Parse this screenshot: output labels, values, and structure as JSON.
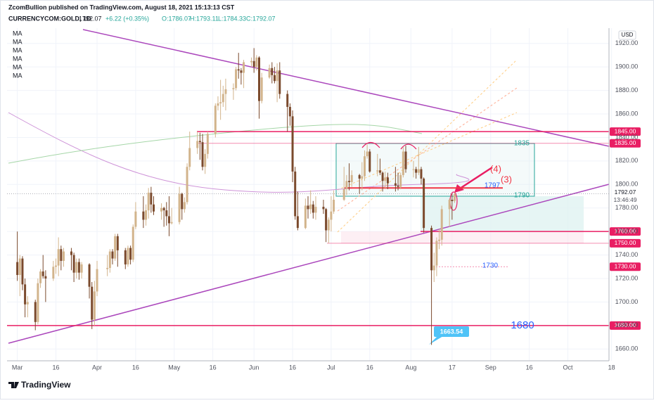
{
  "chart_data": {
    "type": "candlestick",
    "title": "ZcomBullion published on TradingView.com, August 18, 2021 15:13:13 CST",
    "symbol": "CURRENCYCOM:GOLD, 1D",
    "price": "1792.07",
    "change": "+6.22 (+0.35%)",
    "ohlc_labels": [
      "O:1786.07",
      "H:1793.11",
      "L:1784.33",
      "C:1792.07"
    ],
    "indicators": [
      "MA",
      "MA",
      "MA",
      "MA",
      "MA",
      "MA"
    ],
    "currency": "USD",
    "brand": "TradingView",
    "up_color": "#d2b48c",
    "down_color": "#7b4a2d",
    "level_color": "#e91e63",
    "x": [
      "2021-03-01",
      "2021-03-02",
      "2021-03-03",
      "2021-03-04",
      "2021-03-05",
      "2021-03-08",
      "2021-03-09",
      "2021-03-10",
      "2021-03-11",
      "2021-03-12",
      "2021-03-15",
      "2021-03-16",
      "2021-03-17",
      "2021-03-18",
      "2021-03-19",
      "2021-03-22",
      "2021-03-23",
      "2021-03-24",
      "2021-03-25",
      "2021-03-26",
      "2021-03-29",
      "2021-03-30",
      "2021-03-31",
      "2021-04-01",
      "2021-04-05",
      "2021-04-06",
      "2021-04-07",
      "2021-04-08",
      "2021-04-09",
      "2021-04-12",
      "2021-04-13",
      "2021-04-14",
      "2021-04-15",
      "2021-04-16",
      "2021-04-19",
      "2021-04-20",
      "2021-04-21",
      "2021-04-22",
      "2021-04-23",
      "2021-04-26",
      "2021-04-27",
      "2021-04-28",
      "2021-04-29",
      "2021-04-30",
      "2021-05-03",
      "2021-05-04",
      "2021-05-05",
      "2021-05-06",
      "2021-05-07",
      "2021-05-10",
      "2021-05-11",
      "2021-05-12",
      "2021-05-13",
      "2021-05-14",
      "2021-05-17",
      "2021-05-18",
      "2021-05-19",
      "2021-05-20",
      "2021-05-21",
      "2021-05-24",
      "2021-05-25",
      "2021-05-26",
      "2021-05-27",
      "2021-05-28",
      "2021-05-31",
      "2021-06-01",
      "2021-06-02",
      "2021-06-03",
      "2021-06-04",
      "2021-06-07",
      "2021-06-08",
      "2021-06-09",
      "2021-06-10",
      "2021-06-11",
      "2021-06-14",
      "2021-06-15",
      "2021-06-16",
      "2021-06-17",
      "2021-06-18",
      "2021-06-21",
      "2021-06-22",
      "2021-06-23",
      "2021-06-24",
      "2021-06-25",
      "2021-06-28",
      "2021-06-29",
      "2021-06-30",
      "2021-07-01",
      "2021-07-02",
      "2021-07-06",
      "2021-07-07",
      "2021-07-08",
      "2021-07-09",
      "2021-07-12",
      "2021-07-13",
      "2021-07-14",
      "2021-07-15",
      "2021-07-16",
      "2021-07-19",
      "2021-07-20",
      "2021-07-21",
      "2021-07-22",
      "2021-07-23",
      "2021-07-26",
      "2021-07-27",
      "2021-07-28",
      "2021-07-29",
      "2021-07-30",
      "2021-08-02",
      "2021-08-03",
      "2021-08-04",
      "2021-08-05",
      "2021-08-06",
      "2021-08-09",
      "2021-08-10",
      "2021-08-11",
      "2021-08-12",
      "2021-08-13",
      "2021-08-16",
      "2021-08-17",
      "2021-08-18"
    ],
    "ohlc": [
      [
        1734,
        1760,
        1718,
        1723
      ],
      [
        1723,
        1740,
        1705,
        1737
      ],
      [
        1737,
        1739,
        1710,
        1715
      ],
      [
        1715,
        1720,
        1687,
        1698
      ],
      [
        1698,
        1705,
        1687,
        1700
      ],
      [
        1700,
        1702,
        1676,
        1683
      ],
      [
        1683,
        1720,
        1681,
        1716
      ],
      [
        1716,
        1728,
        1712,
        1726
      ],
      [
        1726,
        1740,
        1720,
        1722
      ],
      [
        1722,
        1727,
        1700,
        1720
      ],
      [
        1720,
        1735,
        1718,
        1730
      ],
      [
        1730,
        1737,
        1724,
        1731
      ],
      [
        1731,
        1755,
        1722,
        1745
      ],
      [
        1745,
        1748,
        1727,
        1735
      ],
      [
        1735,
        1746,
        1730,
        1743
      ],
      [
        1743,
        1746,
        1727,
        1740
      ],
      [
        1740,
        1742,
        1717,
        1725
      ],
      [
        1725,
        1737,
        1720,
        1734
      ],
      [
        1734,
        1737,
        1719,
        1725
      ],
      [
        1725,
        1734,
        1720,
        1732
      ],
      [
        1732,
        1733,
        1703,
        1713
      ],
      [
        1713,
        1717,
        1677,
        1685
      ],
      [
        1685,
        1718,
        1680,
        1709
      ],
      [
        1709,
        1735,
        1705,
        1728
      ],
      [
        1728,
        1740,
        1722,
        1729
      ],
      [
        1729,
        1745,
        1725,
        1743
      ],
      [
        1743,
        1745,
        1732,
        1737
      ],
      [
        1737,
        1758,
        1735,
        1756
      ],
      [
        1756,
        1758,
        1730,
        1744
      ],
      [
        1744,
        1746,
        1728,
        1732
      ],
      [
        1732,
        1748,
        1730,
        1746
      ],
      [
        1746,
        1748,
        1732,
        1736
      ],
      [
        1736,
        1766,
        1734,
        1764
      ],
      [
        1764,
        1785,
        1762,
        1777
      ],
      [
        1777,
        1790,
        1763,
        1770
      ],
      [
        1770,
        1783,
        1765,
        1778
      ],
      [
        1778,
        1797,
        1771,
        1793
      ],
      [
        1793,
        1798,
        1776,
        1783
      ],
      [
        1783,
        1790,
        1774,
        1777
      ],
      [
        1777,
        1784,
        1770,
        1780
      ],
      [
        1780,
        1781,
        1764,
        1778
      ],
      [
        1778,
        1785,
        1765,
        1773
      ],
      [
        1773,
        1790,
        1756,
        1767
      ],
      [
        1767,
        1780,
        1766,
        1768
      ],
      [
        1768,
        1798,
        1766,
        1792
      ],
      [
        1792,
        1793,
        1770,
        1779
      ],
      [
        1779,
        1789,
        1776,
        1785
      ],
      [
        1785,
        1818,
        1783,
        1815
      ],
      [
        1815,
        1845,
        1812,
        1831
      ],
      [
        1831,
        1845,
        1826,
        1837
      ],
      [
        1837,
        1844,
        1821,
        1836
      ],
      [
        1836,
        1843,
        1812,
        1815
      ],
      [
        1815,
        1830,
        1809,
        1826
      ],
      [
        1826,
        1845,
        1822,
        1843
      ],
      [
        1843,
        1869,
        1840,
        1867
      ],
      [
        1867,
        1875,
        1863,
        1869
      ],
      [
        1869,
        1889,
        1855,
        1870
      ],
      [
        1870,
        1884,
        1866,
        1877
      ],
      [
        1877,
        1890,
        1863,
        1881
      ],
      [
        1881,
        1886,
        1872,
        1882
      ],
      [
        1882,
        1900,
        1880,
        1898
      ],
      [
        1898,
        1912,
        1890,
        1897
      ],
      [
        1897,
        1899,
        1885,
        1895
      ],
      [
        1895,
        1906,
        1882,
        1904
      ],
      [
        1904,
        1908,
        1900,
        1905
      ],
      [
        1905,
        1916,
        1895,
        1900
      ],
      [
        1900,
        1910,
        1897,
        1908
      ],
      [
        1908,
        1909,
        1856,
        1871
      ],
      [
        1871,
        1895,
        1869,
        1891
      ],
      [
        1891,
        1902,
        1890,
        1899
      ],
      [
        1899,
        1904,
        1886,
        1893
      ],
      [
        1893,
        1900,
        1886,
        1888
      ],
      [
        1888,
        1903,
        1870,
        1897
      ],
      [
        1897,
        1904,
        1873,
        1877
      ],
      [
        1877,
        1880,
        1845,
        1866
      ],
      [
        1866,
        1869,
        1850,
        1858
      ],
      [
        1858,
        1863,
        1802,
        1811
      ],
      [
        1811,
        1815,
        1770,
        1773
      ],
      [
        1773,
        1794,
        1761,
        1763
      ],
      [
        1763,
        1788,
        1762,
        1782
      ],
      [
        1782,
        1790,
        1771,
        1779
      ],
      [
        1779,
        1795,
        1775,
        1783
      ],
      [
        1783,
        1786,
        1771,
        1776
      ],
      [
        1776,
        1790,
        1770,
        1781
      ],
      [
        1781,
        1787,
        1775,
        1779
      ],
      [
        1779,
        1780,
        1751,
        1761
      ],
      [
        1761,
        1772,
        1750,
        1770
      ],
      [
        1770,
        1790,
        1760,
        1777
      ],
      [
        1777,
        1795,
        1775,
        1787
      ],
      [
        1787,
        1815,
        1786,
        1796
      ],
      [
        1796,
        1808,
        1791,
        1803
      ],
      [
        1803,
        1818,
        1795,
        1802
      ],
      [
        1802,
        1812,
        1798,
        1808
      ],
      [
        1808,
        1809,
        1792,
        1805
      ],
      [
        1805,
        1819,
        1795,
        1807
      ],
      [
        1807,
        1829,
        1803,
        1824
      ],
      [
        1824,
        1834,
        1822,
        1828
      ],
      [
        1828,
        1830,
        1810,
        1811
      ],
      [
        1811,
        1826,
        1807,
        1812
      ],
      [
        1812,
        1822,
        1808,
        1810
      ],
      [
        1810,
        1811,
        1794,
        1803
      ],
      [
        1803,
        1811,
        1796,
        1806
      ],
      [
        1806,
        1810,
        1796,
        1801
      ],
      [
        1801,
        1815,
        1794,
        1799
      ],
      [
        1799,
        1810,
        1795,
        1798
      ],
      [
        1798,
        1810,
        1796,
        1808
      ],
      [
        1808,
        1832,
        1806,
        1828
      ],
      [
        1828,
        1833,
        1810,
        1813
      ],
      [
        1813,
        1820,
        1806,
        1813
      ],
      [
        1813,
        1815,
        1805,
        1810
      ],
      [
        1810,
        1832,
        1808,
        1813
      ],
      [
        1813,
        1815,
        1800,
        1805
      ],
      [
        1805,
        1806,
        1759,
        1763
      ],
      [
        1763,
        1765,
        1663.54,
        1727
      ],
      [
        1727,
        1742,
        1717,
        1731
      ],
      [
        1731,
        1755,
        1722,
        1752
      ],
      [
        1752,
        1762,
        1745,
        1753
      ],
      [
        1753,
        1782,
        1748,
        1779
      ],
      [
        1779,
        1788,
        1764,
        1787
      ],
      [
        1787,
        1792,
        1770,
        1785.85
      ],
      [
        1786.07,
        1793.11,
        1784.33,
        1792.07
      ]
    ],
    "xlim": [
      "2021-02-25",
      "2021-10-17"
    ],
    "xticks": [
      {
        "value": "2021-03-01",
        "label": "Mar"
      },
      {
        "value": "2021-03-16",
        "label": "16"
      },
      {
        "value": "2021-04-01",
        "label": "Apr"
      },
      {
        "value": "2021-04-16",
        "label": "16"
      },
      {
        "value": "2021-05-01",
        "label": "May"
      },
      {
        "value": "2021-05-16",
        "label": "16"
      },
      {
        "value": "2021-06-01",
        "label": "Jun"
      },
      {
        "value": "2021-06-16",
        "label": "16"
      },
      {
        "value": "2021-07-01",
        "label": "Jul"
      },
      {
        "value": "2021-07-16",
        "label": "16"
      },
      {
        "value": "2021-08-01",
        "label": "Aug"
      },
      {
        "value": "2021-08-17",
        "label": "17"
      },
      {
        "value": "2021-09-01",
        "label": "Sep"
      },
      {
        "value": "2021-09-16",
        "label": "16"
      },
      {
        "value": "2021-10-01",
        "label": "Oct"
      },
      {
        "value": "2021-10-18",
        "label": "18"
      }
    ],
    "ylim": [
      1650,
      1933
    ],
    "yticks": [
      {
        "value": 1660,
        "label": "1660.00"
      },
      {
        "value": 1680,
        "label": "1680.00"
      },
      {
        "value": 1700,
        "label": "1700.00"
      },
      {
        "value": 1720,
        "label": "1720.00"
      },
      {
        "value": 1740,
        "label": "1740.00"
      },
      {
        "value": 1760,
        "label": "1760.00"
      },
      {
        "value": 1780,
        "label": "1780.00"
      },
      {
        "value": 1800,
        "label": "1800.00"
      },
      {
        "value": 1820,
        "label": "1820.00"
      },
      {
        "value": 1840,
        "label": "1840.00"
      },
      {
        "value": 1860,
        "label": "1860.00"
      },
      {
        "value": 1880,
        "label": "1880.00"
      },
      {
        "value": 1900,
        "label": "1900.00"
      },
      {
        "value": 1920,
        "label": "1920.00"
      }
    ],
    "grid": true,
    "levels": [
      {
        "value": 1845,
        "label": "1845.00"
      },
      {
        "value": 1835,
        "label": "1835.00"
      },
      {
        "value": 1760,
        "label": "1760.00"
      },
      {
        "value": 1750,
        "label": "1750.00"
      },
      {
        "value": 1730,
        "label": "1730.00"
      },
      {
        "value": 1680,
        "label": "1680.00"
      }
    ],
    "last_price": {
      "value": 1792.07,
      "label": "1792.07"
    },
    "countdown": "13:46:49",
    "annotations": [
      "1835",
      "1797",
      "1790",
      "1730",
      "1680",
      "(4)",
      "(3)"
    ],
    "low_callout": 1663.54
  }
}
